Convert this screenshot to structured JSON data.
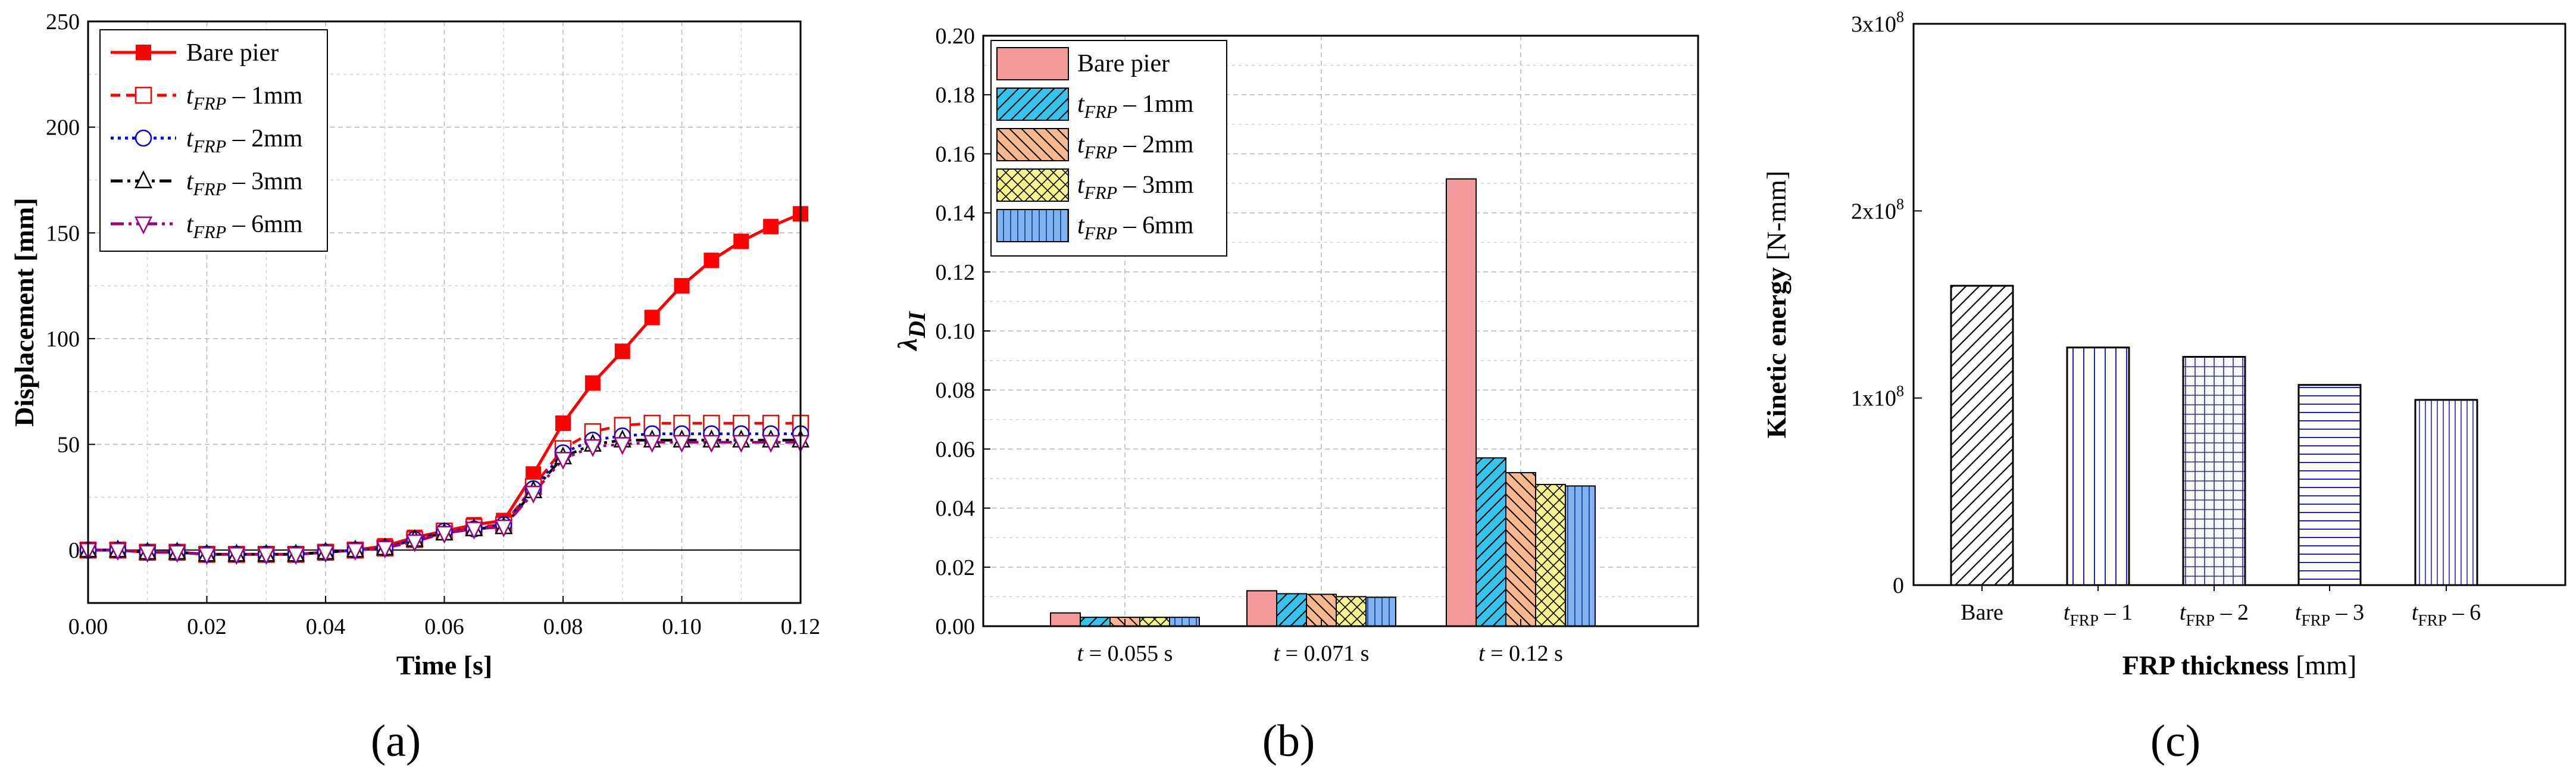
{
  "chart_data": [
    {
      "panel": "(a)",
      "type": "line",
      "xlabel": "Time [s]",
      "ylabel": "Displacement [mm]",
      "xlim": [
        0.0,
        0.12
      ],
      "ylim": [
        -25,
        250
      ],
      "xticks": [
        "0.00",
        "0.02",
        "0.04",
        "0.06",
        "0.08",
        "0.10",
        "0.12"
      ],
      "yticks": [
        "0",
        "50",
        "100",
        "150",
        "200",
        "250"
      ],
      "grid": true,
      "legend_position": "top-left",
      "series": [
        {
          "name": "Bare pier",
          "legend_main": "Bare pier",
          "legend_sub": "",
          "legend_tail": "",
          "color": "#ff0000",
          "dash": "solid",
          "marker": "filled-square",
          "x": [
            0.0,
            0.005,
            0.01,
            0.015,
            0.02,
            0.025,
            0.03,
            0.035,
            0.04,
            0.045,
            0.05,
            0.055,
            0.06,
            0.065,
            0.07,
            0.075,
            0.08,
            0.085,
            0.09,
            0.095,
            0.1,
            0.105,
            0.11,
            0.115,
            0.12
          ],
          "y": [
            0,
            0,
            -1,
            -1,
            -2,
            -2,
            -2,
            -2,
            -1,
            0,
            2,
            6,
            9,
            12,
            14,
            36,
            60,
            79,
            94,
            110,
            125,
            137,
            146,
            153,
            159
          ]
        },
        {
          "name": "tFRP – 1mm",
          "legend_main": "t",
          "legend_sub": "FRP",
          "legend_tail": " – 1mm",
          "color": "#ff0000",
          "dash": "dashed",
          "marker": "open-square",
          "x": [
            0.0,
            0.005,
            0.01,
            0.015,
            0.02,
            0.025,
            0.03,
            0.035,
            0.04,
            0.045,
            0.05,
            0.055,
            0.06,
            0.065,
            0.07,
            0.075,
            0.08,
            0.085,
            0.09,
            0.095,
            0.1,
            0.105,
            0.11,
            0.115,
            0.12
          ],
          "y": [
            0,
            0,
            -1,
            -1,
            -2,
            -2,
            -2,
            -2,
            -1,
            0,
            1,
            5,
            9,
            11,
            12,
            30,
            48,
            56,
            59,
            60,
            60,
            60,
            60,
            60,
            60
          ]
        },
        {
          "name": "tFRP – 2mm",
          "legend_main": "t",
          "legend_sub": "FRP",
          "legend_tail": " – 2mm",
          "color": "#0000ee",
          "dash": "dotted",
          "marker": "open-circle",
          "x": [
            0.0,
            0.005,
            0.01,
            0.015,
            0.02,
            0.025,
            0.03,
            0.035,
            0.04,
            0.045,
            0.05,
            0.055,
            0.06,
            0.065,
            0.07,
            0.075,
            0.08,
            0.085,
            0.09,
            0.095,
            0.1,
            0.105,
            0.11,
            0.115,
            0.12
          ],
          "y": [
            0,
            0,
            -1,
            -1,
            -2,
            -2,
            -2,
            -2,
            -1,
            0,
            1,
            5,
            9,
            10,
            12,
            29,
            46,
            52,
            54,
            55,
            55,
            55,
            55,
            55,
            55
          ]
        },
        {
          "name": "tFRP – 3mm",
          "legend_main": "t",
          "legend_sub": "FRP",
          "legend_tail": " – 3mm",
          "color": "#000000",
          "dash": "dashdot",
          "marker": "open-triangle-up",
          "x": [
            0.0,
            0.005,
            0.01,
            0.015,
            0.02,
            0.025,
            0.03,
            0.035,
            0.04,
            0.045,
            0.05,
            0.055,
            0.06,
            0.065,
            0.07,
            0.075,
            0.08,
            0.085,
            0.09,
            0.095,
            0.1,
            0.105,
            0.11,
            0.115,
            0.12
          ],
          "y": [
            0,
            0,
            -1,
            -1,
            -2,
            -2,
            -2,
            -2,
            -1,
            0,
            1,
            5,
            8,
            10,
            11,
            28,
            44,
            50,
            52,
            52,
            52,
            52,
            52,
            52,
            52
          ]
        },
        {
          "name": "tFRP – 6mm",
          "legend_main": "t",
          "legend_sub": "FRP",
          "legend_tail": " – 6mm",
          "color": "#a0007a",
          "dash": "dashdotdot",
          "marker": "open-triangle-down",
          "x": [
            0.0,
            0.005,
            0.01,
            0.015,
            0.02,
            0.025,
            0.03,
            0.035,
            0.04,
            0.045,
            0.05,
            0.055,
            0.06,
            0.065,
            0.07,
            0.075,
            0.08,
            0.085,
            0.09,
            0.095,
            0.1,
            0.105,
            0.11,
            0.115,
            0.12
          ],
          "y": [
            0,
            0,
            -1,
            -1,
            -2,
            -2,
            -2,
            -2,
            -1,
            0,
            1,
            4,
            8,
            10,
            11,
            27,
            43,
            49,
            50,
            51,
            51,
            51,
            51,
            51,
            51
          ]
        }
      ]
    },
    {
      "panel": "(b)",
      "type": "bar",
      "ylabel_main": "λ",
      "ylabel_sub": "DI",
      "ylim": [
        0.0,
        0.2
      ],
      "yticks": [
        "0.00",
        "0.02",
        "0.04",
        "0.06",
        "0.08",
        "0.10",
        "0.12",
        "0.14",
        "0.16",
        "0.18",
        "0.20"
      ],
      "categories": [
        "t = 0.055 s",
        "t = 0.071 s",
        "t = 0.12 s"
      ],
      "grid": true,
      "legend_position": "top-left",
      "series": [
        {
          "name": "Bare pier",
          "legend_main": "Bare pier",
          "legend_sub": "",
          "legend_tail": "",
          "fill": "#f4989b",
          "pattern": "none",
          "values": [
            0.0045,
            0.012,
            0.1515
          ]
        },
        {
          "name": "tFRP – 1mm",
          "legend_main": "t",
          "legend_sub": "FRP",
          "legend_tail": " – 1mm",
          "fill": "#35c4ee",
          "pattern": "diag-right",
          "values": [
            0.003,
            0.011,
            0.057
          ]
        },
        {
          "name": "tFRP – 2mm",
          "legend_main": "t",
          "legend_sub": "FRP",
          "legend_tail": " – 2mm",
          "fill": "#f7b88d",
          "pattern": "diag-left",
          "values": [
            0.003,
            0.0108,
            0.052
          ]
        },
        {
          "name": "tFRP – 3mm",
          "legend_main": "t",
          "legend_sub": "FRP",
          "legend_tail": " – 3mm",
          "fill": "#f4f48a",
          "pattern": "crosshatch",
          "values": [
            0.003,
            0.01,
            0.048
          ]
        },
        {
          "name": "tFRP – 6mm",
          "legend_main": "t",
          "legend_sub": "FRP",
          "legend_tail": " – 6mm",
          "fill": "#7fb4ee",
          "pattern": "vertical",
          "values": [
            0.003,
            0.0098,
            0.0475
          ]
        }
      ]
    },
    {
      "panel": "(c)",
      "type": "bar",
      "xlabel_bold": "FRP thickness",
      "xlabel_rest": " [mm]",
      "ylabel_bold": "Kinetic energy",
      "ylabel_rest": " [N-mm]",
      "ylim": [
        0,
        300000000
      ],
      "ytick_labels": [
        {
          "value": 0,
          "mantissa": "0",
          "exp": ""
        },
        {
          "value": 100000000,
          "mantissa": "1x10",
          "exp": "8"
        },
        {
          "value": 200000000,
          "mantissa": "2x10",
          "exp": "8"
        },
        {
          "value": 300000000,
          "mantissa": "3x10",
          "exp": "8"
        }
      ],
      "grid": false,
      "bar_color": "#2222cc",
      "categories": [
        {
          "main": "Bare",
          "sub": "",
          "tail": ""
        },
        {
          "main": "t",
          "sub": "FRP",
          "tail": " – 1"
        },
        {
          "main": "t",
          "sub": "FRP",
          "tail": " – 2"
        },
        {
          "main": "t",
          "sub": "FRP",
          "tail": " – 3"
        },
        {
          "main": "t",
          "sub": "FRP",
          "tail": " – 6"
        }
      ],
      "patterns": [
        "diag-black",
        "vertical-blue",
        "grid-blue",
        "horizontal-blue",
        "vertical-dense-blue"
      ],
      "values": [
        160000000,
        127000000,
        122000000,
        107000000,
        99000000
      ]
    }
  ],
  "panel_labels": {
    "a": "(a)",
    "b": "(b)",
    "c": "(c)"
  }
}
